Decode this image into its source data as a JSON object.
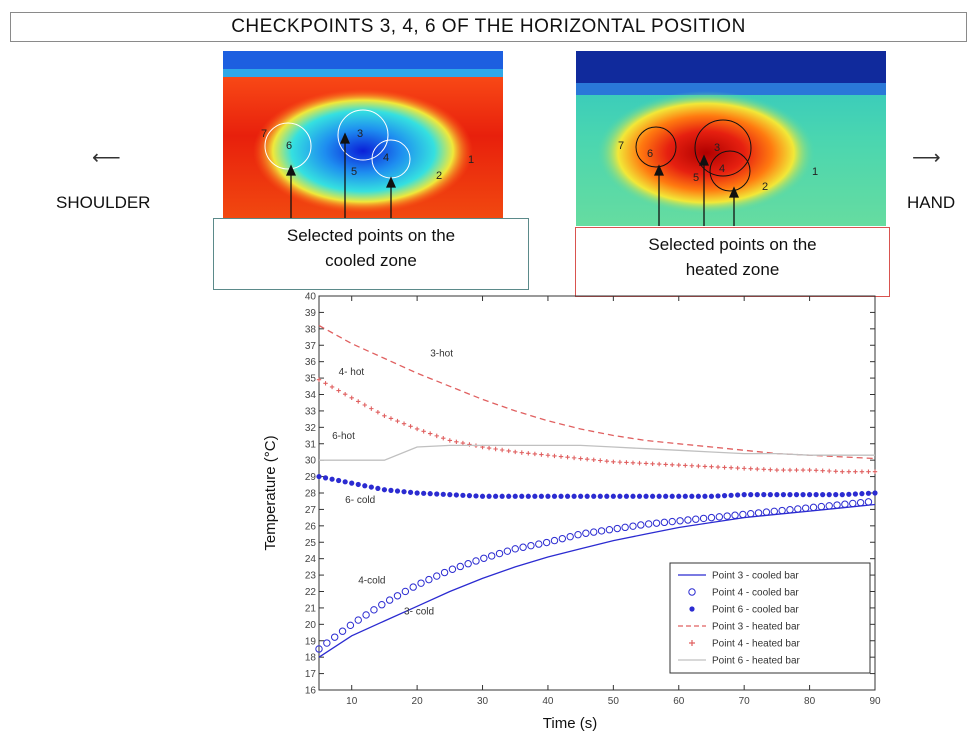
{
  "header": {
    "title": "CHECKPOINTS 3, 4, 6 OF THE HORIZONTAL POSITION"
  },
  "side_labels": {
    "left": "SHOULDER",
    "right": "HAND"
  },
  "thermal_images": {
    "cooled": {
      "caption_line1": "Selected points on the",
      "caption_line2": "cooled zone",
      "point_labels": [
        "7",
        "6",
        "3",
        "4",
        "5",
        "2",
        "1"
      ]
    },
    "heated": {
      "caption_line1": "Selected points on the",
      "caption_line2": "heated zone",
      "point_labels": [
        "7",
        "6",
        "3",
        "4",
        "5",
        "2",
        "1"
      ]
    }
  },
  "chart_data": {
    "type": "line",
    "xlabel": "Time (s)",
    "ylabel": "Temperature (°C)",
    "xlim": [
      5,
      90
    ],
    "ylim": [
      16,
      40
    ],
    "x_ticks": [
      10,
      20,
      30,
      40,
      50,
      60,
      70,
      80,
      90
    ],
    "y_ticks": [
      16,
      17,
      18,
      19,
      20,
      21,
      22,
      23,
      24,
      25,
      26,
      27,
      28,
      29,
      30,
      31,
      32,
      33,
      34,
      35,
      36,
      37,
      38,
      39,
      40
    ],
    "grid": false,
    "legend_position": "bottom-right",
    "x": [
      5,
      10,
      15,
      20,
      25,
      30,
      35,
      40,
      45,
      50,
      55,
      60,
      65,
      70,
      75,
      80,
      85,
      90
    ],
    "series": [
      {
        "name": "Point 3 -  cooled bar",
        "color": "#2b2bd1",
        "style": "solid",
        "values": [
          18.0,
          19.3,
          20.2,
          21.1,
          22.0,
          22.8,
          23.5,
          24.1,
          24.6,
          25.1,
          25.5,
          25.9,
          26.2,
          26.5,
          26.7,
          26.9,
          27.1,
          27.3
        ]
      },
      {
        "name": "Point 4 -  cooled bar",
        "color": "#2b2bd1",
        "style": "circle",
        "values": [
          18.5,
          20.0,
          21.3,
          22.4,
          23.3,
          24.0,
          24.6,
          25.0,
          25.5,
          25.8,
          26.1,
          26.3,
          26.5,
          26.7,
          26.9,
          27.1,
          27.3,
          27.5
        ]
      },
      {
        "name": "Point 6 -  cooled bar",
        "color": "#2b2bd1",
        "style": "star",
        "values": [
          29.0,
          28.6,
          28.2,
          28.0,
          27.9,
          27.8,
          27.8,
          27.8,
          27.8,
          27.8,
          27.8,
          27.8,
          27.8,
          27.9,
          27.9,
          27.9,
          27.9,
          28.0
        ]
      },
      {
        "name": "Point 3 -  heated bar",
        "color": "#e06060",
        "style": "dashed",
        "values": [
          38.2,
          37.1,
          36.2,
          35.3,
          34.5,
          33.7,
          33.0,
          32.4,
          31.9,
          31.5,
          31.2,
          31.0,
          30.8,
          30.6,
          30.4,
          30.3,
          30.2,
          30.1
        ]
      },
      {
        "name": "Point 4 -  heated bar",
        "color": "#e06060",
        "style": "plus",
        "values": [
          34.9,
          33.8,
          32.7,
          31.9,
          31.2,
          30.8,
          30.5,
          30.3,
          30.1,
          29.9,
          29.8,
          29.7,
          29.6,
          29.5,
          29.4,
          29.4,
          29.3,
          29.3
        ]
      },
      {
        "name": "Point 6 -  heated bar",
        "color": "#c0c0c0",
        "style": "solid",
        "values": [
          30.0,
          30.0,
          30.0,
          30.8,
          30.9,
          30.9,
          30.9,
          30.9,
          30.9,
          30.8,
          30.7,
          30.6,
          30.5,
          30.4,
          30.4,
          30.3,
          30.3,
          30.3
        ]
      }
    ],
    "annotations": [
      {
        "text": "3-hot",
        "x": 22,
        "y": 36.3
      },
      {
        "text": "4- hot",
        "x": 8,
        "y": 35.2
      },
      {
        "text": "6-hot",
        "x": 7,
        "y": 31.3
      },
      {
        "text": "6- cold",
        "x": 9,
        "y": 27.4
      },
      {
        "text": "4-cold",
        "x": 11,
        "y": 22.5
      },
      {
        "text": "3- cold",
        "x": 18,
        "y": 20.6
      }
    ]
  }
}
